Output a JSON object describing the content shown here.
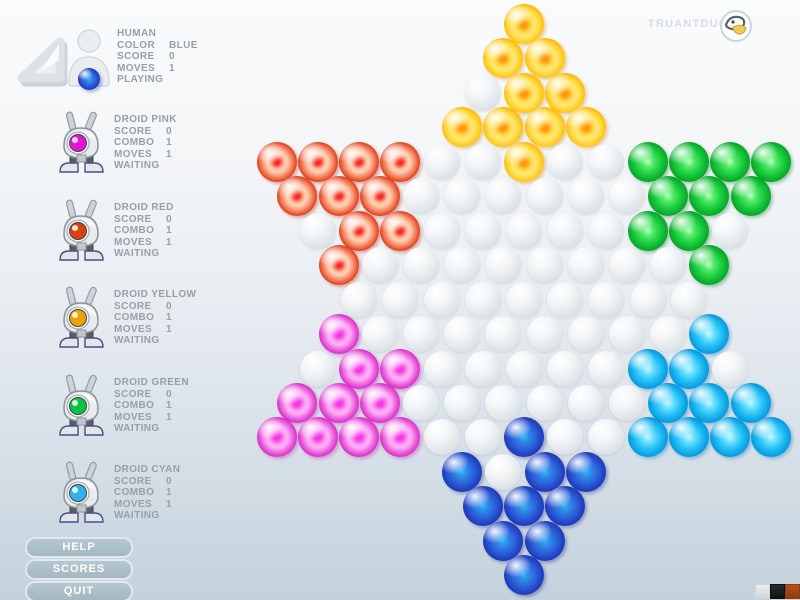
{
  "brand": "TRUANTDUCK",
  "human": {
    "name": "HUMAN",
    "rows": [
      [
        "COLOR",
        "BLUE"
      ],
      [
        "SCORE",
        "0"
      ],
      [
        "MOVES",
        "1"
      ]
    ],
    "status": "PLAYING",
    "marble": "B"
  },
  "droids": [
    {
      "name": "DROID PINK",
      "eye": "#e613d4",
      "rows": [
        [
          "SCORE",
          "0"
        ],
        [
          "COMBO",
          "1"
        ],
        [
          "MOVES",
          "1"
        ]
      ],
      "status": "WAITING"
    },
    {
      "name": "DROID RED",
      "eye": "#d8420e",
      "rows": [
        [
          "SCORE",
          "0"
        ],
        [
          "COMBO",
          "1"
        ],
        [
          "MOVES",
          "1"
        ]
      ],
      "status": "WAITING"
    },
    {
      "name": "DROID YELLOW",
      "eye": "#eda306",
      "rows": [
        [
          "SCORE",
          "0"
        ],
        [
          "COMBO",
          "1"
        ],
        [
          "MOVES",
          "1"
        ]
      ],
      "status": "WAITING"
    },
    {
      "name": "DROID GREEN",
      "eye": "#0cc244",
      "rows": [
        [
          "SCORE",
          "0"
        ],
        [
          "COMBO",
          "1"
        ],
        [
          "MOVES",
          "1"
        ]
      ],
      "status": "WAITING"
    },
    {
      "name": "DROID CYAN",
      "eye": "#2db4ee",
      "rows": [
        [
          "SCORE",
          "0"
        ],
        [
          "COMBO",
          "1"
        ],
        [
          "MOVES",
          "1"
        ]
      ],
      "status": "WAITING"
    }
  ],
  "buttons": [
    {
      "id": "help",
      "label": "HELP"
    },
    {
      "id": "scores",
      "label": "SCORES"
    },
    {
      "id": "quit",
      "label": "QUIT"
    }
  ],
  "board": {
    "legend": {
      "Y": "yellow",
      "R": "red",
      "G": "green",
      "M": "magenta",
      "C": "cyan",
      "B": "blue",
      ".": "empty"
    },
    "rows": [
      "Y",
      "YY",
      ".YY",
      "YYYY",
      "RRRR..Y..GGGG",
      "RRR......GGG",
      ".RR.....GG.",
      "R........G",
      ".........",
      "M........C",
      ".MM.....CC.",
      "MMM......CCC",
      "MMMM..B..CCCC",
      "B.BB",
      "BBB",
      "BB",
      "B"
    ]
  },
  "swatches": [
    {
      "name": "light",
      "color": "#eceeee",
      "border": "#d2d6d8"
    },
    {
      "name": "dark",
      "color": "#2a2c2e",
      "border": "#101112"
    },
    {
      "name": "orange",
      "color": "#b8511f",
      "border": "#8e3a12"
    }
  ],
  "colors": {
    "accent_text": "#989fa7",
    "button_fill": "#a9bcc6",
    "brand_text": "#d7dce1"
  }
}
